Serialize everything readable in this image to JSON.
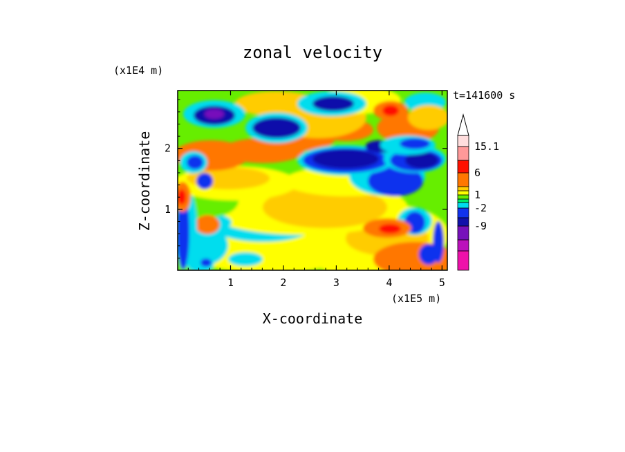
{
  "chart_data": {
    "type": "heatmap",
    "title": "zonal velocity",
    "xlabel": "X-coordinate",
    "ylabel": "Z-coordinate",
    "x_scale_label": "(x1E5 m)",
    "y_scale_label": "(x1E4 m)",
    "time_label": "t=141600 s",
    "xlim": [
      0,
      5.1
    ],
    "ylim": [
      0,
      2.95
    ],
    "x_ticks": [
      1,
      2,
      3,
      4,
      5
    ],
    "y_ticks": [
      1,
      2
    ],
    "colorbar": {
      "tick_labels": [
        "15.1",
        "6",
        "1",
        "-2",
        "-9"
      ],
      "levels": [
        {
          "label": "",
          "color": "#ee11aa"
        },
        {
          "label": "",
          "color": "#bb11bb"
        },
        {
          "label": "-9",
          "color": "#7711bb"
        },
        {
          "label": "",
          "color": "#1111aa"
        },
        {
          "label": "-2",
          "color": "#1133ee"
        },
        {
          "label": "",
          "color": "#00ddee"
        },
        {
          "label": "",
          "color": "#00ee66"
        },
        {
          "label": "1",
          "color": "#66ee00"
        },
        {
          "label": "",
          "color": "#ffff00"
        },
        {
          "label": "",
          "color": "#ffcc00"
        },
        {
          "label": "6",
          "color": "#ff7700"
        },
        {
          "label": "",
          "color": "#ff1100"
        },
        {
          "label": "15.1",
          "color": "#ff9999"
        },
        {
          "label": "",
          "color": "#ffdddd"
        }
      ],
      "extend_top": true
    },
    "colors": {
      "background": "#ffffff",
      "field_dominant": [
        "#66ee00",
        "#ffff00",
        "#ffcc00",
        "#ff7700",
        "#00ddee",
        "#1133ee",
        "#1111aa",
        "#ff1100",
        "#7711bb"
      ]
    },
    "features": [
      {
        "x": 0.9,
        "z": 2.55,
        "sign": "negative",
        "level": -9
      },
      {
        "x": 1.8,
        "z": 2.4,
        "sign": "negative",
        "level": -7
      },
      {
        "x": 3.0,
        "z": 1.75,
        "sign": "negative",
        "level": -4
      },
      {
        "x": 4.5,
        "z": 1.65,
        "sign": "negative",
        "level": -4
      },
      {
        "x": 4.1,
        "z": 2.65,
        "sign": "positive",
        "level": 8
      },
      {
        "x": 1.0,
        "z": 1.9,
        "sign": "positive",
        "level": 5
      },
      {
        "x": 0.2,
        "z": 1.2,
        "sign": "positive",
        "level": 10
      }
    ]
  }
}
